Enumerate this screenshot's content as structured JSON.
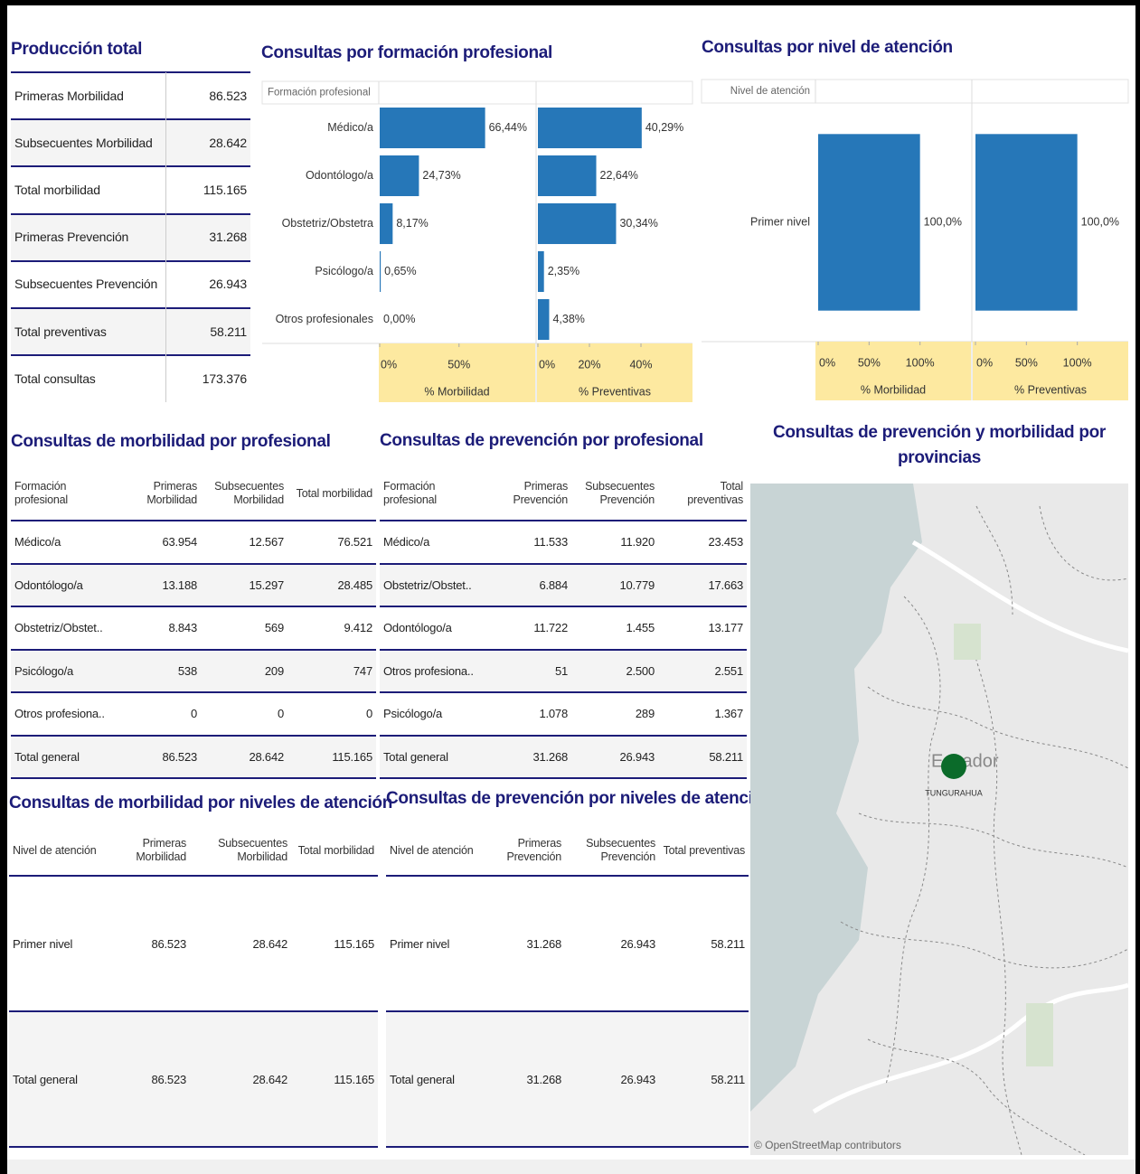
{
  "production": {
    "title": "Producción total",
    "rows": [
      [
        "Primeras Morbilidad",
        "86.523"
      ],
      [
        "Subsecuentes Morbilidad",
        "28.642"
      ],
      [
        "Total morbilidad",
        "115.165"
      ],
      [
        "Primeras Prevención",
        "31.268"
      ],
      [
        "Subsecuentes Prevención",
        "26.943"
      ],
      [
        "Total preventivas",
        "58.211"
      ],
      [
        "Total consultas",
        "173.376"
      ]
    ]
  },
  "chart_data": [
    {
      "type": "bar",
      "title": "Consultas por formación profesional",
      "axis_header": "Formación profesional",
      "categories": [
        "Médico/a",
        "Odontólogo/a",
        "Obstetriz/Obstetra",
        "Psicólogo/a",
        "Otros profesionales"
      ],
      "series": [
        {
          "name": "% Morbilidad",
          "color": "#2677b8",
          "values": [
            66.44,
            24.73,
            8.17,
            0.65,
            0.0
          ],
          "value_labels": [
            "66,44%",
            "24,73%",
            "8,17%",
            "0,65%",
            "0,00%"
          ],
          "xlim": [
            0,
            98
          ],
          "xticks": [
            {
              "value": 0,
              "label": "0%"
            },
            {
              "value": 50,
              "label": "50%"
            }
          ]
        },
        {
          "name": "% Preventivas",
          "color": "#2677b8",
          "values": [
            40.29,
            22.64,
            30.34,
            2.35,
            4.38
          ],
          "value_labels": [
            "40,29%",
            "22,64%",
            "30,34%",
            "2,35%",
            "4,38%"
          ],
          "xlim": [
            0,
            60
          ],
          "xticks": [
            {
              "value": 0,
              "label": "0%"
            },
            {
              "value": 20,
              "label": "20%"
            },
            {
              "value": 40,
              "label": "40%"
            }
          ]
        }
      ]
    },
    {
      "type": "bar",
      "title": "Consultas por nivel de atención",
      "axis_header": "Nivel de atención",
      "categories": [
        "Primer nivel"
      ],
      "series": [
        {
          "name": "% Morbilidad",
          "color": "#2677b8",
          "values": [
            100.0
          ],
          "value_labels": [
            "100,0%"
          ],
          "xlim": [
            0,
            150
          ],
          "xticks": [
            {
              "value": 0,
              "label": "0%"
            },
            {
              "value": 50,
              "label": "50%"
            },
            {
              "value": 100,
              "label": "100%"
            }
          ]
        },
        {
          "name": "% Preventivas",
          "color": "#2677b8",
          "values": [
            100.0
          ],
          "value_labels": [
            "100,0%"
          ],
          "xlim": [
            0,
            150
          ],
          "xticks": [
            {
              "value": 0,
              "label": "0%"
            },
            {
              "value": 50,
              "label": "50%"
            },
            {
              "value": 100,
              "label": "100%"
            }
          ]
        }
      ]
    }
  ],
  "morbidity_by_profession": {
    "title": "Consultas de morbilidad por profesional",
    "columns": [
      "Formación profesional",
      "Primeras Morbilidad",
      "Subsecuentes Morbilidad",
      "Total morbilidad"
    ],
    "rows": [
      [
        "Médico/a",
        "63.954",
        "12.567",
        "76.521"
      ],
      [
        "Odontólogo/a",
        "13.188",
        "15.297",
        "28.485"
      ],
      [
        "Obstetriz/Obstet..",
        "8.843",
        "569",
        "9.412"
      ],
      [
        "Psicólogo/a",
        "538",
        "209",
        "747"
      ],
      [
        "Otros profesiona..",
        "0",
        "0",
        "0"
      ],
      [
        "Total general",
        "86.523",
        "28.642",
        "115.165"
      ]
    ]
  },
  "prevention_by_profession": {
    "title": "Consultas de prevención por profesional",
    "columns": [
      "Formación profesional",
      "Primeras Prevención",
      "Subsecuentes Prevención",
      "Total preventivas"
    ],
    "rows": [
      [
        "Médico/a",
        "11.533",
        "11.920",
        "23.453"
      ],
      [
        "Obstetriz/Obstet..",
        "6.884",
        "10.779",
        "17.663"
      ],
      [
        "Odontólogo/a",
        "11.722",
        "1.455",
        "13.177"
      ],
      [
        "Otros profesiona..",
        "51",
        "2.500",
        "2.551"
      ],
      [
        "Psicólogo/a",
        "1.078",
        "289",
        "1.367"
      ],
      [
        "Total general",
        "31.268",
        "26.943",
        "58.211"
      ]
    ]
  },
  "morbidity_by_level": {
    "title": "Consultas de morbilidad por niveles de atención",
    "columns": [
      "Nivel de atención",
      "Primeras Morbilidad",
      "Subsecuentes Morbilidad",
      "Total morbilidad"
    ],
    "rows": [
      [
        "Primer nivel",
        "86.523",
        "28.642",
        "115.165"
      ],
      [
        "Total general",
        "86.523",
        "28.642",
        "115.165"
      ]
    ]
  },
  "prevention_by_level": {
    "title": "Consultas de prevención por niveles de atención",
    "columns": [
      "Nivel de atención",
      "Primeras Prevención",
      "Subsecuentes Prevención",
      "Total preventivas"
    ],
    "rows": [
      [
        "Primer nivel",
        "31.268",
        "26.943",
        "58.211"
      ],
      [
        "Total general",
        "31.268",
        "26.943",
        "58.211"
      ]
    ]
  },
  "map": {
    "title": "Consultas de prevención y morbilidad por provincias",
    "country_label": "Ecuador",
    "province_label": "TUNGURAHUA",
    "attribution": "© OpenStreetMap contributors"
  }
}
